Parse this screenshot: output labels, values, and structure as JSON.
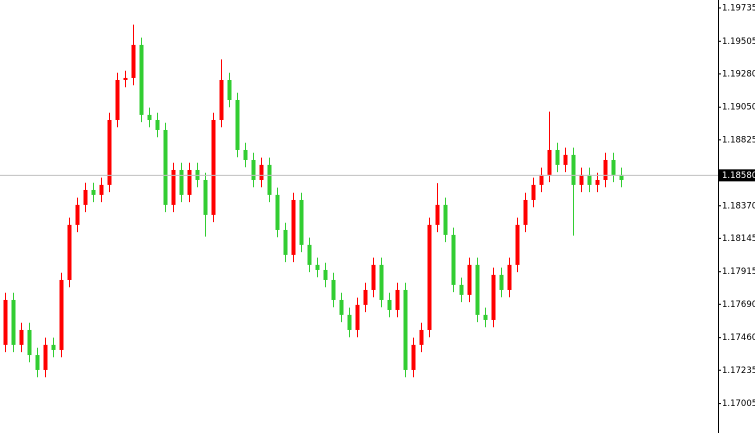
{
  "chart_data": {
    "type": "candlestick",
    "up_color": "#ff0000",
    "down_color": "#32cd32",
    "open": [
      1.1741,
      1.1772,
      1.1741,
      1.17513,
      1.1734,
      1.17237,
      1.1741,
      1.17375,
      1.17858,
      1.18238,
      1.18376,
      1.18479,
      1.18445,
      1.18514,
      1.18962,
      1.19238,
      1.19252,
      1.1948,
      1.18997,
      1.18962,
      1.18893,
      1.18376,
      1.18617,
      1.18445,
      1.18617,
      1.18548,
      1.18307,
      1.18962,
      1.19238,
      1.191,
      1.18755,
      1.18686,
      1.18548,
      1.18652,
      1.18445,
      1.18203,
      1.18031,
      1.1841,
      1.181,
      1.17962,
      1.17927,
      1.17858,
      1.1772,
      1.17617,
      1.17513,
      1.17686,
      1.17789,
      1.17962,
      1.1772,
      1.17651,
      1.17789,
      1.17237,
      1.1741,
      1.17513,
      1.18238,
      1.18376,
      1.18169,
      1.17824,
      1.17755,
      1.17962,
      1.17617,
      1.17582,
      1.17893,
      1.17789,
      1.17962,
      1.18238,
      1.1841,
      1.18514,
      1.18583,
      1.18755,
      1.18652,
      1.18721,
      1.18514,
      1.18583,
      1.18514,
      1.18548,
      1.18686,
      1.18583
    ],
    "high": [
      1.1777,
      1.1777,
      1.17563,
      1.17563,
      1.1739,
      1.1746,
      1.1746,
      1.17908,
      1.18288,
      1.18426,
      1.18529,
      1.18529,
      1.18564,
      1.19012,
      1.19288,
      1.19302,
      1.1962,
      1.1953,
      1.19047,
      1.19012,
      1.18943,
      1.18667,
      1.18667,
      1.18667,
      1.18667,
      1.18598,
      1.19012,
      1.1938,
      1.19288,
      1.1915,
      1.18805,
      1.18736,
      1.18702,
      1.18702,
      1.18495,
      1.18253,
      1.1846,
      1.1846,
      1.1815,
      1.18012,
      1.17977,
      1.17908,
      1.1777,
      1.17667,
      1.17736,
      1.17839,
      1.18012,
      1.18012,
      1.1777,
      1.17839,
      1.17839,
      1.1746,
      1.17563,
      1.18288,
      1.18526,
      1.18426,
      1.18219,
      1.17874,
      1.18012,
      1.18012,
      1.17667,
      1.17943,
      1.17943,
      1.18012,
      1.18288,
      1.1846,
      1.18564,
      1.18633,
      1.1902,
      1.18805,
      1.18771,
      1.18771,
      1.18633,
      1.18633,
      1.18598,
      1.18736,
      1.18736,
      1.18633
    ],
    "low": [
      1.1736,
      1.1736,
      1.1736,
      1.1729,
      1.17187,
      1.17187,
      1.17325,
      1.17325,
      1.17808,
      1.18188,
      1.18326,
      1.18395,
      1.18395,
      1.18464,
      1.18912,
      1.19188,
      1.19202,
      1.18947,
      1.18912,
      1.18843,
      1.18326,
      1.18326,
      1.18395,
      1.18395,
      1.18498,
      1.18157,
      1.18257,
      1.18912,
      1.1905,
      1.18705,
      1.18636,
      1.18498,
      1.18498,
      1.18395,
      1.18153,
      1.17981,
      1.17981,
      1.1805,
      1.17912,
      1.17877,
      1.17808,
      1.1767,
      1.17567,
      1.17463,
      1.17463,
      1.17636,
      1.17739,
      1.1767,
      1.17601,
      1.17601,
      1.17187,
      1.17187,
      1.1736,
      1.17463,
      1.18188,
      1.18119,
      1.17774,
      1.17705,
      1.17705,
      1.17567,
      1.17532,
      1.17532,
      1.17739,
      1.17739,
      1.17912,
      1.18188,
      1.1836,
      1.18464,
      1.18533,
      1.18602,
      1.18602,
      1.18164,
      1.18464,
      1.18464,
      1.18464,
      1.18498,
      1.18533,
      1.18498
    ],
    "close": [
      1.1772,
      1.1741,
      1.17513,
      1.1734,
      1.17237,
      1.1741,
      1.17375,
      1.17858,
      1.18238,
      1.18376,
      1.18479,
      1.18445,
      1.18514,
      1.18962,
      1.19238,
      1.19252,
      1.1948,
      1.18997,
      1.18962,
      1.18893,
      1.18376,
      1.18617,
      1.18445,
      1.18617,
      1.18548,
      1.18307,
      1.18962,
      1.19238,
      1.191,
      1.18755,
      1.18686,
      1.18548,
      1.18652,
      1.18445,
      1.18203,
      1.18031,
      1.1841,
      1.181,
      1.17962,
      1.17927,
      1.17858,
      1.1772,
      1.17617,
      1.17513,
      1.17686,
      1.17789,
      1.17962,
      1.1772,
      1.17651,
      1.17789,
      1.17237,
      1.1741,
      1.17513,
      1.18238,
      1.18376,
      1.18169,
      1.17824,
      1.17755,
      1.17962,
      1.17617,
      1.17582,
      1.17893,
      1.17789,
      1.17962,
      1.18238,
      1.1841,
      1.18514,
      1.18583,
      1.18755,
      1.18652,
      1.18721,
      1.18514,
      1.18583,
      1.18514,
      1.18548,
      1.18686,
      1.18583,
      1.18548
    ],
    "ylim": [
      1.16802,
      1.1979
    ],
    "yticks": [
      1.19735,
      1.19505,
      {
        "value": 1.1928,
        "label": "1.19280"
      },
      {
        "value": 1.1905,
        "label": "1.19050"
      },
      1.18825,
      {
        "value": 1.1837,
        "label": "1.18370"
      },
      1.18145,
      1.17915,
      {
        "value": 1.1769,
        "label": "1.17690"
      },
      {
        "value": 1.1746,
        "label": "1.17460"
      },
      1.17235,
      1.17005
    ],
    "current_price": {
      "value": 1.1858,
      "label": "1.18580"
    }
  }
}
